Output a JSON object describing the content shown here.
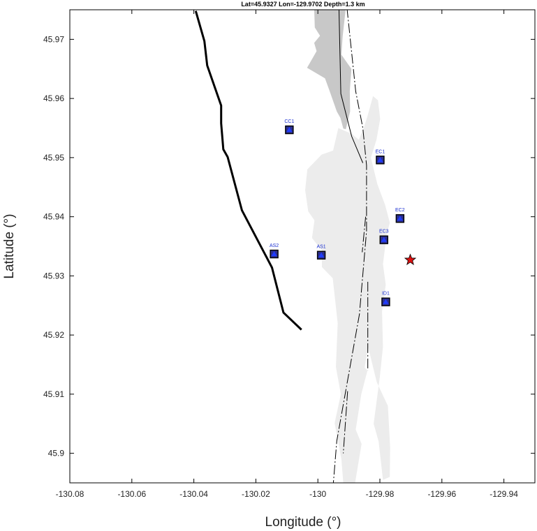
{
  "chart_data": {
    "type": "scatter",
    "title": "Lat=45.9327  Lon=-129.9702  Depth=1.3 km",
    "xlabel": "Longitude (°)",
    "ylabel": "Latitude (°)",
    "xlim": [
      -130.08,
      -129.93
    ],
    "ylim": [
      45.895,
      45.975
    ],
    "xticks": [
      -130.08,
      -130.06,
      -130.04,
      -130.02,
      -130,
      -129.98,
      -129.96,
      -129.94
    ],
    "xtick_labels": [
      "-130.08",
      "-130.06",
      "-130.04",
      "-130.02",
      "-130",
      "-129.98",
      "-129.96",
      "-129.94"
    ],
    "yticks": [
      45.9,
      45.91,
      45.92,
      45.93,
      45.94,
      45.95,
      45.96,
      45.97
    ],
    "ytick_labels": [
      "45.9",
      "45.91",
      "45.92",
      "45.93",
      "45.94",
      "45.95",
      "45.96",
      "45.97"
    ],
    "grid": false,
    "stations": [
      {
        "name": "CC1",
        "lon": -130.0092,
        "lat": 45.9547
      },
      {
        "name": "EC1",
        "lon": -129.9799,
        "lat": 45.9496
      },
      {
        "name": "EC2",
        "lon": -129.9735,
        "lat": 45.9397
      },
      {
        "name": "EC3",
        "lon": -129.9787,
        "lat": 45.9361
      },
      {
        "name": "AS2",
        "lon": -130.0141,
        "lat": 45.9337
      },
      {
        "name": "AS1",
        "lon": -129.9989,
        "lat": 45.9335
      },
      {
        "name": "ID1",
        "lon": -129.9781,
        "lat": 45.9256
      }
    ],
    "epicenter": {
      "lon": -129.9702,
      "lat": 45.9327,
      "depth_km": 1.3
    },
    "caldera_rim": [
      [
        -130.0394,
        45.9748
      ],
      [
        -130.0366,
        45.9697
      ],
      [
        -130.0357,
        45.9656
      ],
      [
        -130.0312,
        45.9588
      ],
      [
        -130.0312,
        45.9558
      ],
      [
        -130.0305,
        45.9514
      ],
      [
        -130.0291,
        45.9501
      ],
      [
        -130.0245,
        45.9411
      ],
      [
        -130.0148,
        45.9314
      ],
      [
        -130.0111,
        45.9238
      ],
      [
        -130.0053,
        45.9209
      ]
    ],
    "fissures": [
      [
        [
          -129.9932,
          45.9753
        ],
        [
          -129.9926,
          45.9608
        ],
        [
          -129.9891,
          45.9536
        ],
        [
          -129.9855,
          45.9491
        ]
      ],
      [
        [
          -129.9906,
          45.9753
        ],
        [
          -129.9878,
          45.9612
        ],
        [
          -129.9855,
          45.955
        ],
        [
          -129.9843,
          45.9487
        ],
        [
          -129.9843,
          45.9376
        ],
        [
          -129.9866,
          45.9235
        ],
        [
          -129.9939,
          45.9021
        ],
        [
          -129.995,
          45.895
        ]
      ],
      [
        [
          -129.9846,
          45.94
        ],
        [
          -129.9857,
          45.934
        ]
      ],
      [
        [
          -129.9839,
          45.929
        ],
        [
          -129.9839,
          45.914
        ]
      ],
      [
        [
          -129.9904,
          45.9105
        ],
        [
          -129.9918,
          45.9
        ]
      ]
    ],
    "lava_flows": {
      "dark": [
        [
          -130.0012,
          45.9753
        ],
        [
          -130.001,
          45.972
        ],
        [
          -129.9993,
          45.9706
        ],
        [
          -130.0012,
          45.9694
        ],
        [
          -130.0004,
          45.968
        ],
        [
          -130.0026,
          45.966
        ],
        [
          -130.0035,
          45.9652
        ],
        [
          -129.9977,
          45.9634
        ],
        [
          -129.9963,
          45.9614
        ],
        [
          -129.9939,
          45.9578
        ],
        [
          -129.9927,
          45.9567
        ],
        [
          -129.9918,
          45.9549
        ],
        [
          -129.991,
          45.9548
        ],
        [
          -129.9896,
          45.9578
        ],
        [
          -129.9897,
          45.9612
        ],
        [
          -129.9892,
          45.965
        ],
        [
          -129.9924,
          45.9674
        ],
        [
          -129.992,
          45.9705
        ],
        [
          -129.991,
          45.9753
        ]
      ],
      "light": [
        [
          [
            -129.9934,
            45.955
          ],
          [
            -129.9951,
            45.9512
          ],
          [
            -129.9988,
            45.9505
          ],
          [
            -130.0034,
            45.948
          ],
          [
            -130.0041,
            45.9445
          ],
          [
            -130.0031,
            45.9409
          ],
          [
            -130.0011,
            45.9394
          ],
          [
            -130.0019,
            45.9364
          ],
          [
            -129.9987,
            45.9343
          ],
          [
            -129.9987,
            45.9315
          ],
          [
            -129.9952,
            45.9296
          ],
          [
            -129.9936,
            45.922
          ],
          [
            -129.9942,
            45.9146
          ],
          [
            -129.9926,
            45.91
          ],
          [
            -129.9946,
            45.9051
          ],
          [
            -129.9924,
            45.899
          ],
          [
            -129.9918,
            45.895
          ],
          [
            -129.988,
            45.895
          ],
          [
            -129.9859,
            45.9016
          ],
          [
            -129.9878,
            45.904
          ],
          [
            -129.986,
            45.91
          ],
          [
            -129.984,
            45.914
          ],
          [
            -129.9849,
            45.9145
          ],
          [
            -129.9838,
            45.918
          ],
          [
            -129.981,
            45.912
          ],
          [
            -129.9774,
            45.908
          ],
          [
            -129.9767,
            45.901
          ],
          [
            -129.9768,
            45.896
          ],
          [
            -129.979,
            45.8955
          ],
          [
            -129.9804,
            45.902
          ],
          [
            -129.982,
            45.905
          ],
          [
            -129.98,
            45.913
          ],
          [
            -129.979,
            45.918
          ],
          [
            -129.9793,
            45.924
          ],
          [
            -129.9781,
            45.9285
          ],
          [
            -129.979,
            45.932
          ],
          [
            -129.9778,
            45.937
          ],
          [
            -129.9768,
            45.939
          ],
          [
            -129.9783,
            45.942
          ],
          [
            -129.9808,
            45.9455
          ],
          [
            -129.9829,
            45.95
          ],
          [
            -129.9811,
            45.953
          ],
          [
            -129.9799,
            45.9565
          ],
          [
            -129.9806,
            45.9597
          ],
          [
            -129.9822,
            45.9604
          ],
          [
            -129.984,
            45.957
          ],
          [
            -129.9852,
            45.955
          ],
          [
            -129.9868,
            45.953
          ],
          [
            -129.989,
            45.954
          ]
        ]
      ]
    }
  }
}
